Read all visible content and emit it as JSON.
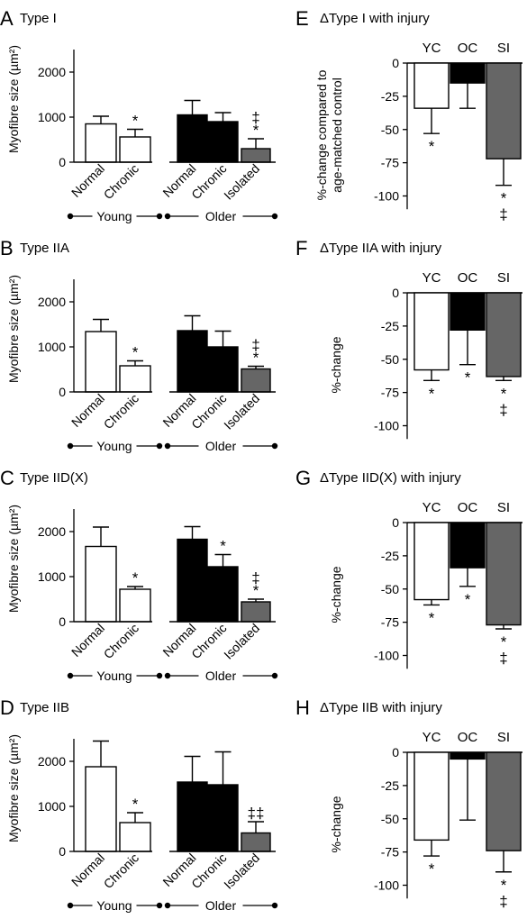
{
  "chart_data": [
    {
      "panel": "A",
      "title": "Type I",
      "type": "bar",
      "ylabel": "Myofibre size (µm²)",
      "ylim": [
        0,
        2500
      ],
      "yticks": [
        0,
        1000,
        2000
      ],
      "categories": [
        "Normal",
        "Chronic",
        "Normal",
        "Chronic",
        "Isolated"
      ],
      "groups": [
        "Young",
        "Older"
      ],
      "values": [
        850,
        560,
        1050,
        900,
        300
      ],
      "errors": [
        170,
        170,
        320,
        200,
        220
      ],
      "annotations": [
        "",
        "*",
        "",
        "",
        "‡\n*"
      ],
      "colors": [
        "#ffffff",
        "#ffffff",
        "#000000",
        "#000000",
        "#666666"
      ]
    },
    {
      "panel": "B",
      "title": "Type IIA",
      "type": "bar",
      "ylabel": "Myofibre size (µm²)",
      "ylim": [
        0,
        2500
      ],
      "yticks": [
        0,
        1000,
        2000
      ],
      "categories": [
        "Normal",
        "Chronic",
        "Normal",
        "Chronic",
        "Isolated"
      ],
      "groups": [
        "Young",
        "Older"
      ],
      "values": [
        1340,
        580,
        1360,
        1000,
        510
      ],
      "errors": [
        270,
        110,
        330,
        350,
        60
      ],
      "annotations": [
        "",
        "*",
        "",
        "",
        "‡\n*"
      ],
      "colors": [
        "#ffffff",
        "#ffffff",
        "#000000",
        "#000000",
        "#666666"
      ]
    },
    {
      "panel": "C",
      "title": "Type IID(X)",
      "type": "bar",
      "ylabel": "Myofibre size (µm²)",
      "ylim": [
        0,
        2500
      ],
      "yticks": [
        0,
        1000,
        2000
      ],
      "categories": [
        "Normal",
        "Chronic",
        "Normal",
        "Chronic",
        "Isolated"
      ],
      "groups": [
        "Young",
        "Older"
      ],
      "values": [
        1670,
        720,
        1830,
        1220,
        440
      ],
      "errors": [
        430,
        60,
        280,
        270,
        60
      ],
      "annotations": [
        "",
        "*",
        "",
        "*",
        "‡\n*"
      ],
      "colors": [
        "#ffffff",
        "#ffffff",
        "#000000",
        "#000000",
        "#666666"
      ]
    },
    {
      "panel": "D",
      "title": "Type IIB",
      "type": "bar",
      "ylabel": "Myofibre size (µm²)",
      "ylim": [
        0,
        2500
      ],
      "yticks": [
        0,
        1000,
        2000
      ],
      "categories": [
        "Normal",
        "Chronic",
        "Normal",
        "Chronic",
        "Isolated"
      ],
      "groups": [
        "Young",
        "Older"
      ],
      "values": [
        1880,
        640,
        1540,
        1480,
        410
      ],
      "errors": [
        570,
        220,
        570,
        730,
        250
      ],
      "annotations": [
        "",
        "*",
        "",
        "",
        "‡‡"
      ],
      "colors": [
        "#ffffff",
        "#ffffff",
        "#000000",
        "#000000",
        "#666666"
      ]
    },
    {
      "panel": "E",
      "title": "ΔType I with injury",
      "type": "bar",
      "ylabel": "%-change compared to\nage-matched control",
      "ylim": [
        -110,
        0
      ],
      "yticks": [
        0,
        -25,
        -50,
        -75,
        -100
      ],
      "categories": [
        "YC",
        "OC",
        "SI"
      ],
      "values": [
        -34,
        -15,
        -72
      ],
      "errors": [
        19,
        19,
        20
      ],
      "annotations": [
        "*",
        "",
        "*\n‡"
      ],
      "colors": [
        "#ffffff",
        "#000000",
        "#666666"
      ]
    },
    {
      "panel": "F",
      "title": "ΔType IIA with injury",
      "type": "bar",
      "ylabel": "%-change",
      "ylim": [
        -110,
        0
      ],
      "yticks": [
        0,
        -25,
        -50,
        -75,
        -100
      ],
      "categories": [
        "YC",
        "OC",
        "SI"
      ],
      "values": [
        -58,
        -28,
        -63
      ],
      "errors": [
        8,
        26,
        3
      ],
      "annotations": [
        "*",
        "*",
        "*\n‡"
      ],
      "colors": [
        "#ffffff",
        "#000000",
        "#666666"
      ]
    },
    {
      "panel": "G",
      "title": "ΔType IID(X) with injury",
      "type": "bar",
      "ylabel": "%-change",
      "ylim": [
        -110,
        0
      ],
      "yticks": [
        0,
        -25,
        -50,
        -75,
        -100
      ],
      "categories": [
        "YC",
        "OC",
        "SI"
      ],
      "values": [
        -58,
        -34,
        -77
      ],
      "errors": [
        4,
        14,
        3
      ],
      "annotations": [
        "*",
        "*",
        "*\n‡"
      ],
      "colors": [
        "#ffffff",
        "#000000",
        "#666666"
      ]
    },
    {
      "panel": "H",
      "title": "ΔType IIB with injury",
      "type": "bar",
      "ylabel": "%-change",
      "ylim": [
        -110,
        0
      ],
      "yticks": [
        0,
        -25,
        -50,
        -75,
        -100
      ],
      "categories": [
        "YC",
        "OC",
        "SI"
      ],
      "values": [
        -66,
        -5,
        -74
      ],
      "errors": [
        12,
        46,
        16
      ],
      "annotations": [
        "*",
        "",
        "*\n‡"
      ],
      "colors": [
        "#ffffff",
        "#000000",
        "#666666"
      ]
    }
  ]
}
